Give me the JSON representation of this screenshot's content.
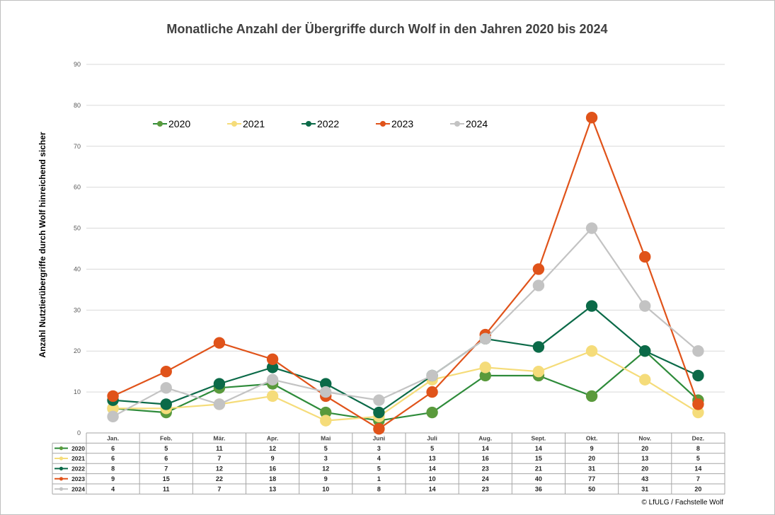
{
  "chart_data": {
    "type": "line",
    "title": "Monatliche Anzahl der Übergriffe durch Wolf in den Jahren 2020 bis 2024",
    "xlabel": "",
    "ylabel": "Anzahl Nutztierübergriffe durch Wolf hinreichend sicher",
    "ylim": [
      0,
      90
    ],
    "yticks": [
      0,
      10,
      20,
      30,
      40,
      50,
      60,
      70,
      80,
      90
    ],
    "grid": true,
    "legend_position": "top-left",
    "categories": [
      "Jan.",
      "Feb.",
      "Mär.",
      "Apr.",
      "Mai",
      "Juni",
      "Juli",
      "Aug.",
      "Sept.",
      "Okt.",
      "Nov.",
      "Dez."
    ],
    "series": [
      {
        "name": "2020",
        "color": "#2e8b3a",
        "marker": "#5a9a3c",
        "values": [
          6,
          5,
          11,
          12,
          5,
          3,
          5,
          14,
          14,
          9,
          20,
          8
        ]
      },
      {
        "name": "2021",
        "color": "#f5dc7a",
        "marker": "#f5dc7a",
        "values": [
          6,
          6,
          7,
          9,
          3,
          4,
          13,
          16,
          15,
          20,
          13,
          5
        ]
      },
      {
        "name": "2022",
        "color": "#0b6a48",
        "marker": "#0b6a48",
        "values": [
          8,
          7,
          12,
          16,
          12,
          5,
          14,
          23,
          21,
          31,
          20,
          14
        ]
      },
      {
        "name": "2023",
        "color": "#e0531a",
        "marker": "#e0531a",
        "values": [
          9,
          15,
          22,
          18,
          9,
          1,
          10,
          24,
          40,
          77,
          43,
          7
        ]
      },
      {
        "name": "2024",
        "color": "#c3c3c3",
        "marker": "#c3c3c3",
        "values": [
          4,
          11,
          7,
          13,
          10,
          8,
          14,
          23,
          36,
          50,
          31,
          20
        ]
      }
    ]
  },
  "footer": {
    "copyright": "© LfULG / Fachstelle Wolf"
  }
}
